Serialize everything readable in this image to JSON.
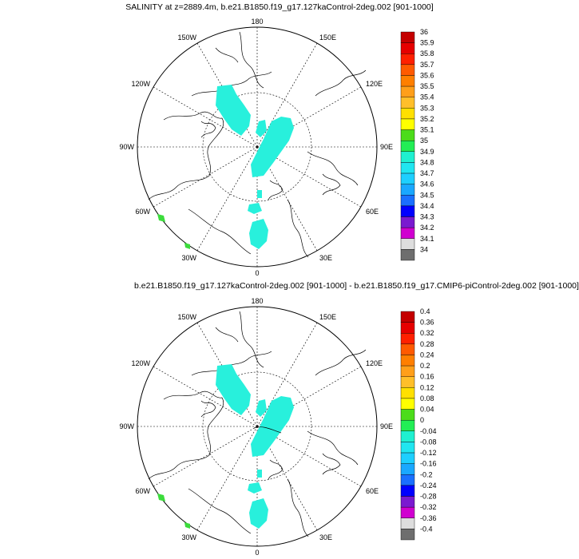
{
  "panels": [
    {
      "title": "SALINITY at z=2889.4m, b.e21.B1850.f19_g17.127kaControl-2deg.002 [901-1000]",
      "lon_labels": {
        "top": "180",
        "bottom": "0",
        "left": "90W",
        "right": "90E",
        "ul": "150W",
        "ur": "150E",
        "ul2": "120W",
        "ur2": "120E",
        "ll": "60W",
        "lr": "60E",
        "ll2": "30W",
        "lr2": "30E"
      },
      "colorbar": {
        "labels": [
          "36",
          "35.9",
          "35.8",
          "35.7",
          "35.6",
          "35.5",
          "35.4",
          "35.3",
          "35.2",
          "35.1",
          "35",
          "34.9",
          "34.8",
          "34.7",
          "34.6",
          "34.5",
          "34.4",
          "34.3",
          "34.2",
          "34.1",
          "34"
        ],
        "colors": [
          "#c40000",
          "#e60000",
          "#ff2000",
          "#ff5a00",
          "#ff7f00",
          "#ff9f1a",
          "#ffbf2a",
          "#ffe000",
          "#ffff00",
          "#4cdc1a",
          "#22ee55",
          "#1ff0d0",
          "#20e6f0",
          "#1ecfff",
          "#1aa8ff",
          "#1a70ff",
          "#0000ff",
          "#7a1ad0",
          "#d000d0",
          "#dddddd",
          "#6e6e6e"
        ]
      }
    },
    {
      "title": "b.e21.B1850.f19_g17.127kaControl-2deg.002 [901-1000] - b.e21.B1850.f19_g17.CMIP6-piControl-2deg.002 [901-1000]",
      "lon_labels": {
        "top": "180",
        "bottom": "0",
        "left": "90W",
        "right": "90E",
        "ul": "150W",
        "ur": "150E",
        "ul2": "120W",
        "ur2": "120E",
        "ll": "60W",
        "lr": "60E",
        "ll2": "30W",
        "lr2": "30E"
      },
      "colorbar": {
        "labels": [
          "0.4",
          "0.36",
          "0.32",
          "0.28",
          "0.24",
          "0.2",
          "0.16",
          "0.12",
          "0.08",
          "0.04",
          "0",
          "-0.04",
          "-0.08",
          "-0.12",
          "-0.16",
          "-0.2",
          "-0.24",
          "-0.28",
          "-0.32",
          "-0.36",
          "-0.4"
        ],
        "colors": [
          "#c40000",
          "#e60000",
          "#ff2000",
          "#ff5a00",
          "#ff7f00",
          "#ff9f1a",
          "#ffbf2a",
          "#ffe000",
          "#ffff00",
          "#4cdc1a",
          "#22ee55",
          "#1ff0d0",
          "#20e6f0",
          "#1ecfff",
          "#1aa8ff",
          "#1a70ff",
          "#0000ff",
          "#7a1ad0",
          "#d000d0",
          "#dddddd",
          "#6e6e6e"
        ]
      }
    }
  ],
  "field_colors": {
    "cyan": "#28f0dc",
    "green": "#3cdc3c"
  }
}
